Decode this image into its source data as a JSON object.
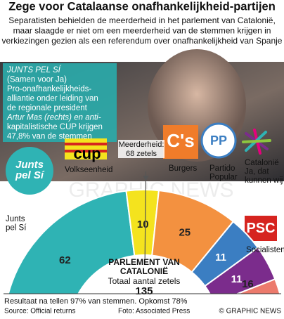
{
  "chart_data": {
    "type": "half-donut",
    "title": "Zege voor Catalaanse onafhankelijkheid-partijen",
    "subtitle": [
      "Separatisten behielden de meerderheid in het parlement van Catalonië,",
      "maar slaagde er niet om een meerderheid van de stemmen krijgen in",
      "verkiezingen gezien als een referendum over onafhankelijkheid van Spanje"
    ],
    "info_box": [
      "JUNTS PEL SÍ",
      "(Samen voor Ja)",
      "Pro-onafhankelijkheids-",
      "alliantie onder leiding van",
      "de regionale president",
      "Artur Mas (rechts) en anti-",
      "kapitalistische CUP krijgen",
      "47,8% van de stemmen"
    ],
    "categories": [
      "Junts\npel Sí",
      "Volkseenheid",
      "Burgers",
      "Partido\nPopular",
      "Catalonië\nJa, dat\nkunnen wij",
      "Socialisten"
    ],
    "logos": [
      "Junts\npel Sí",
      "cup",
      "C's",
      "PP",
      null,
      "PSC"
    ],
    "values": [
      62,
      10,
      25,
      11,
      11,
      16
    ],
    "colors": [
      "#2fb3b4",
      "#f4e31e",
      "#f39140",
      "#3b7ec2",
      "#7b2c8c",
      "#ec7a6c"
    ],
    "majority": {
      "label": "Meerderheid:",
      "value": 68,
      "value_label": "68 zetels"
    },
    "center": [
      "PARLEMENT VAN",
      "CATALONIË",
      "Totaal aantal zetels"
    ],
    "total": 135,
    "watermark": "GRAPHIC NEWS",
    "note": "Resultaat na tellen  97% van stemmen. Opkomst 78%",
    "source": "Source:  Official returns",
    "credit": "Foto: Associated Press",
    "copyright": "© GRAPHIC NEWS"
  }
}
